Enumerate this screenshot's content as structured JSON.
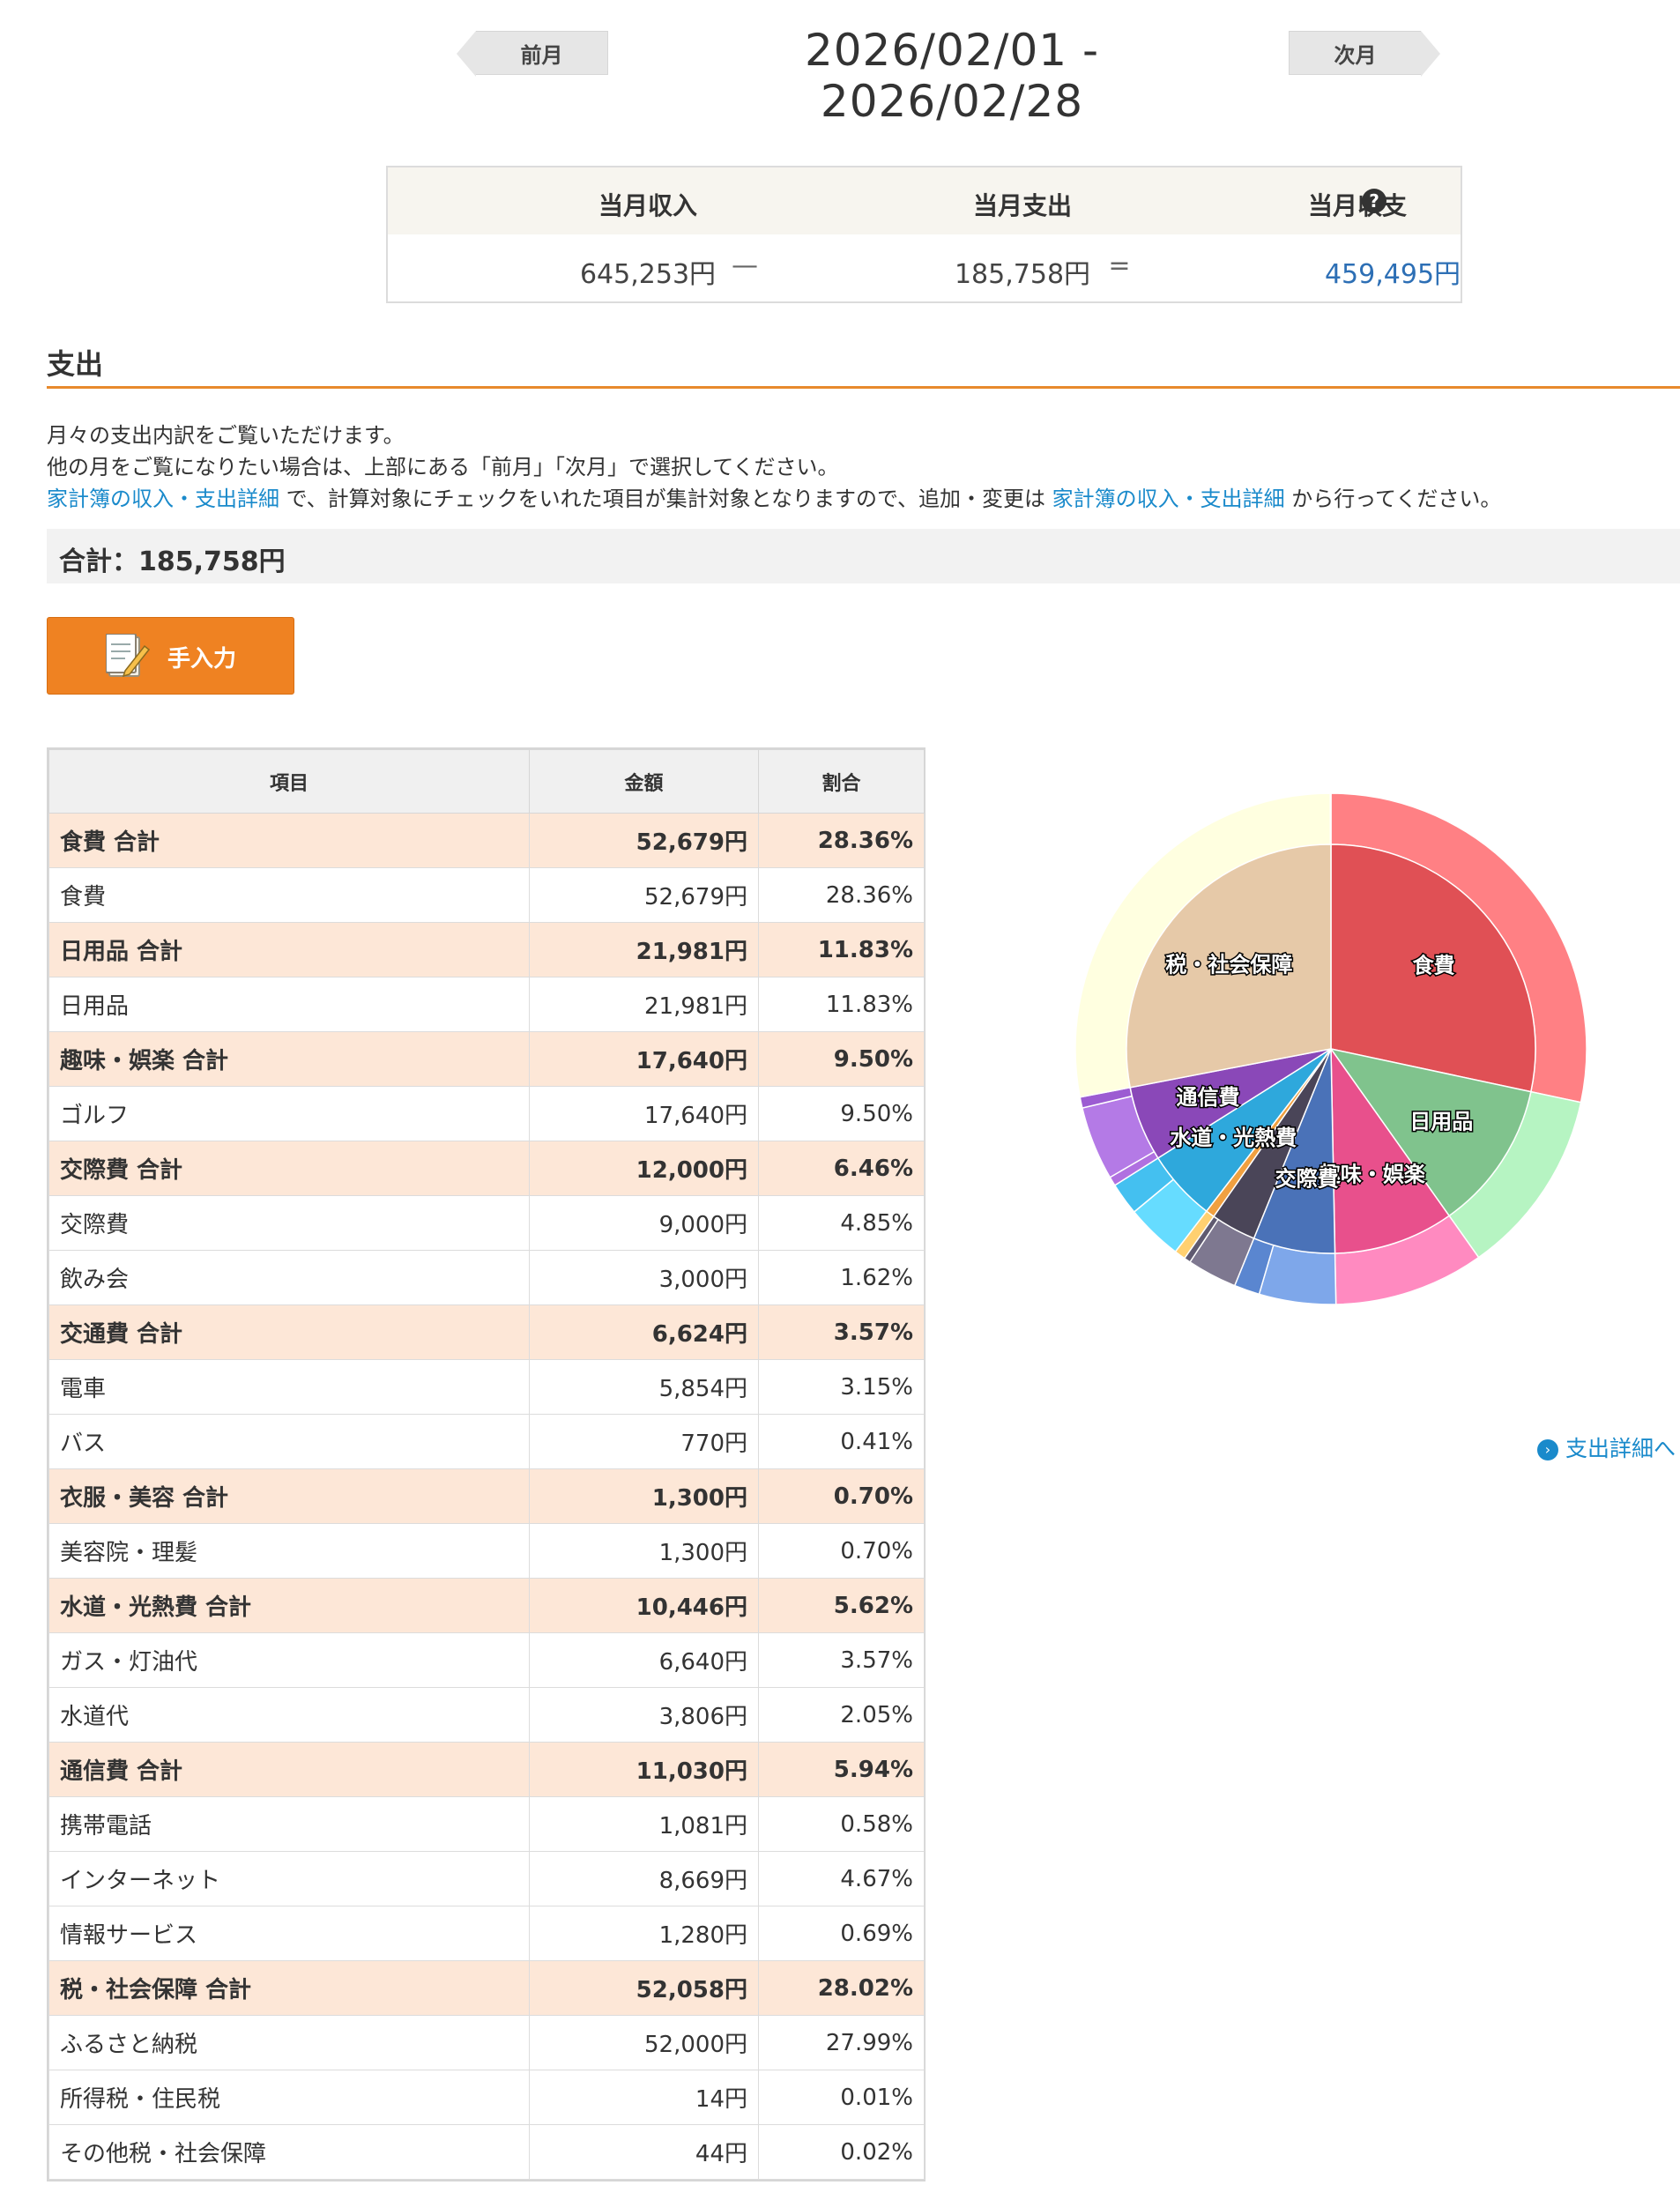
{
  "nav": {
    "prev_label": "前月",
    "next_label": "次月",
    "period": "2026/02/01 - 2026/02/28"
  },
  "summary": {
    "income_label": "当月収入",
    "expense_label": "当月支出",
    "balance_label": "当月収支",
    "income": "645,253円",
    "expense": "185,758円",
    "balance": "459,495円",
    "minus_sign": "—",
    "equals_sign": "=",
    "help_icon": "question-circle-icon",
    "help_glyph": "?"
  },
  "section": {
    "title": "支出",
    "desc_line1": "月々の支出内訳をご覧いただけます。",
    "desc_line2": "他の月をご覧になりたい場合は、上部にある「前月」「次月」で選択してください。",
    "desc_link1": "家計簿の収入・支出詳細",
    "desc_mid": " で、計算対象にチェックをいれた項目が集計対象となりますので、追加・変更は ",
    "desc_link2": "家計簿の収入・支出詳細",
    "desc_end": " から行ってください。",
    "total": "合計：185,758円",
    "manual_button": "手入力",
    "manual_icon": "memo-pencil-icon"
  },
  "table": {
    "headers": [
      "項目",
      "金額",
      "割合"
    ],
    "rows": [
      {
        "name": "食費 合計",
        "amount": "52,679円",
        "pct": "28.36%",
        "total": true
      },
      {
        "name": "食費",
        "amount": "52,679円",
        "pct": "28.36%",
        "total": false
      },
      {
        "name": "日用品 合計",
        "amount": "21,981円",
        "pct": "11.83%",
        "total": true
      },
      {
        "name": "日用品",
        "amount": "21,981円",
        "pct": "11.83%",
        "total": false
      },
      {
        "name": "趣味・娯楽 合計",
        "amount": "17,640円",
        "pct": "9.50%",
        "total": true
      },
      {
        "name": "ゴルフ",
        "amount": "17,640円",
        "pct": "9.50%",
        "total": false
      },
      {
        "name": "交際費 合計",
        "amount": "12,000円",
        "pct": "6.46%",
        "total": true
      },
      {
        "name": "交際費",
        "amount": "9,000円",
        "pct": "4.85%",
        "total": false
      },
      {
        "name": "飲み会",
        "amount": "3,000円",
        "pct": "1.62%",
        "total": false
      },
      {
        "name": "交通費 合計",
        "amount": "6,624円",
        "pct": "3.57%",
        "total": true
      },
      {
        "name": "電車",
        "amount": "5,854円",
        "pct": "3.15%",
        "total": false
      },
      {
        "name": "バス",
        "amount": "770円",
        "pct": "0.41%",
        "total": false
      },
      {
        "name": "衣服・美容 合計",
        "amount": "1,300円",
        "pct": "0.70%",
        "total": true
      },
      {
        "name": "美容院・理髪",
        "amount": "1,300円",
        "pct": "0.70%",
        "total": false
      },
      {
        "name": "水道・光熱費 合計",
        "amount": "10,446円",
        "pct": "5.62%",
        "total": true
      },
      {
        "name": "ガス・灯油代",
        "amount": "6,640円",
        "pct": "3.57%",
        "total": false
      },
      {
        "name": "水道代",
        "amount": "3,806円",
        "pct": "2.05%",
        "total": false
      },
      {
        "name": "通信費 合計",
        "amount": "11,030円",
        "pct": "5.94%",
        "total": true
      },
      {
        "name": "携帯電話",
        "amount": "1,081円",
        "pct": "0.58%",
        "total": false
      },
      {
        "name": "インターネット",
        "amount": "8,669円",
        "pct": "4.67%",
        "total": false
      },
      {
        "name": "情報サービス",
        "amount": "1,280円",
        "pct": "0.69%",
        "total": false
      },
      {
        "name": "税・社会保障 合計",
        "amount": "52,058円",
        "pct": "28.02%",
        "total": true
      },
      {
        "name": "ふるさと納税",
        "amount": "52,000円",
        "pct": "27.99%",
        "total": false
      },
      {
        "name": "所得税・住民税",
        "amount": "14円",
        "pct": "0.01%",
        "total": false
      },
      {
        "name": "その他税・社会保障",
        "amount": "44円",
        "pct": "0.02%",
        "total": false
      }
    ]
  },
  "chart_data": {
    "type": "pie",
    "inner": [
      {
        "label": "食費",
        "value": 52679,
        "color": "#e05055",
        "show_label": true
      },
      {
        "label": "日用品",
        "value": 21981,
        "color": "#80c38d",
        "show_label": true
      },
      {
        "label": "趣味・娯楽",
        "value": 17640,
        "color": "#e8508c",
        "show_label": true
      },
      {
        "label": "交際費",
        "value": 12000,
        "color": "#4a72b8",
        "show_label": true
      },
      {
        "label": "交通費",
        "value": 6624,
        "color": "#4a4558",
        "show_label": false
      },
      {
        "label": "衣服・美容",
        "value": 1300,
        "color": "#f0a040",
        "show_label": false
      },
      {
        "label": "水道・光熱費",
        "value": 10446,
        "color": "#2ea8dc",
        "show_label": true
      },
      {
        "label": "通信費",
        "value": 11030,
        "color": "#8a48b8",
        "show_label": true
      },
      {
        "label": "税・社会保障",
        "value": 52058,
        "color": "#e6c9a8",
        "show_label": true
      }
    ],
    "outer": [
      {
        "label": "食費",
        "value": 52679,
        "color": "#ff8084"
      },
      {
        "label": "日用品",
        "value": 21981,
        "color": "#b6f4c2"
      },
      {
        "label": "ゴルフ",
        "value": 17640,
        "color": "#ff8ac0"
      },
      {
        "label": "交際費",
        "value": 9000,
        "color": "#7ea7ea"
      },
      {
        "label": "飲み会",
        "value": 3000,
        "color": "#5a86d0"
      },
      {
        "label": "電車",
        "value": 5854,
        "color": "#7e7890"
      },
      {
        "label": "バス",
        "value": 770,
        "color": "#5f5a70"
      },
      {
        "label": "美容院・理髪",
        "value": 1300,
        "color": "#ffd070"
      },
      {
        "label": "ガス・灯油代",
        "value": 6640,
        "color": "#66dcff"
      },
      {
        "label": "水道代",
        "value": 3806,
        "color": "#44c0f0"
      },
      {
        "label": "携帯電話",
        "value": 1081,
        "color": "#b070e0"
      },
      {
        "label": "インターネット",
        "value": 8669,
        "color": "#b47ae6"
      },
      {
        "label": "情報サービス",
        "value": 1280,
        "color": "#9c5cd2"
      },
      {
        "label": "ふるさと納税",
        "value": 52000,
        "color": "#ffffe0"
      },
      {
        "label": "所得税・住民税",
        "value": 14,
        "color": "#fffde8"
      },
      {
        "label": "その他税・社会保障",
        "value": 44,
        "color": "#fffde8"
      }
    ]
  },
  "detail_link": {
    "label": "支出詳細へ",
    "icon": "arrow-circle-right-icon",
    "glyph": "›"
  }
}
